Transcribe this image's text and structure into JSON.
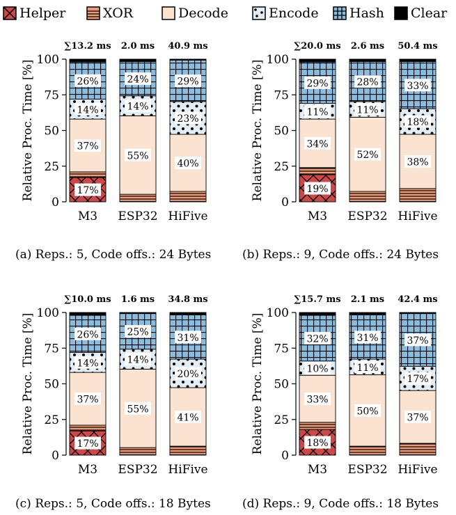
{
  "legend": [
    {
      "name": "Helper",
      "color": "#c94a48",
      "pattern": "crosshatch"
    },
    {
      "name": "XOR",
      "color": "#ec9a79",
      "pattern": "hlines"
    },
    {
      "name": "Decode",
      "color": "#fbe3d2",
      "pattern": "none"
    },
    {
      "name": "Encode",
      "color": "#e3edf5",
      "pattern": "dots"
    },
    {
      "name": "Hash",
      "color": "#8bbcde",
      "pattern": "grid"
    },
    {
      "name": "Clear",
      "color": "#000000",
      "pattern": "none"
    }
  ],
  "captions": [
    "(a) Reps.: 5, Code offs.: 24 Bytes",
    "(b) Reps.: 9, Code offs.: 24 Bytes",
    "(c) Reps.: 5, Code offs.: 18 Bytes",
    "(d) Reps.: 9, Code offs.: 18 Bytes"
  ],
  "chart_data": [
    {
      "type": "bar",
      "stacked": true,
      "ylabel": "Relative Proc.  Time [%]",
      "ylim": [
        0,
        100
      ],
      "yticks": [
        0,
        25,
        50,
        75,
        100
      ],
      "categories": [
        "M3",
        "ESP32",
        "HiFive"
      ],
      "totals": [
        "∑13.2 ms",
        "2.0 ms",
        "40.9 ms"
      ],
      "series": [
        {
          "name": "Helper",
          "values": [
            17,
            0.3,
            0.3
          ],
          "labels": [
            "17%",
            "",
            ""
          ]
        },
        {
          "name": "XOR",
          "values": [
            4,
            5,
            7
          ],
          "labels": [
            "",
            "",
            ""
          ]
        },
        {
          "name": "Decode",
          "values": [
            37,
            55,
            40
          ],
          "labels": [
            "37%",
            "55%",
            "40%"
          ]
        },
        {
          "name": "Encode",
          "values": [
            14,
            14,
            23
          ],
          "labels": [
            "14%",
            "14%",
            "23%"
          ]
        },
        {
          "name": "Hash",
          "values": [
            26,
            24,
            29
          ],
          "labels": [
            "26%",
            "24%",
            "29%"
          ]
        },
        {
          "name": "Clear",
          "values": [
            2,
            1.7,
            0.7
          ],
          "labels": [
            "",
            "",
            ""
          ]
        }
      ]
    },
    {
      "type": "bar",
      "stacked": true,
      "ylabel": "Relative Proc.  Time [%]",
      "ylim": [
        0,
        100
      ],
      "yticks": [
        0,
        25,
        50,
        75,
        100
      ],
      "categories": [
        "M3",
        "ESP32",
        "HiFive"
      ],
      "totals": [
        "∑20.0 ms",
        "2.6 ms",
        "50.4 ms"
      ],
      "series": [
        {
          "name": "Helper",
          "values": [
            19,
            0.3,
            0.3
          ],
          "labels": [
            "19%",
            "",
            ""
          ]
        },
        {
          "name": "XOR",
          "values": [
            5,
            7,
            9
          ],
          "labels": [
            "",
            "",
            ""
          ]
        },
        {
          "name": "Decode",
          "values": [
            34,
            52,
            38
          ],
          "labels": [
            "34%",
            "52%",
            "38%"
          ]
        },
        {
          "name": "Encode",
          "values": [
            11,
            11,
            18
          ],
          "labels": [
            "11%",
            "11%",
            "18%"
          ]
        },
        {
          "name": "Hash",
          "values": [
            29,
            28,
            33
          ],
          "labels": [
            "29%",
            "28%",
            "33%"
          ]
        },
        {
          "name": "Clear",
          "values": [
            2,
            1.7,
            1.7
          ],
          "labels": [
            "",
            "",
            ""
          ]
        }
      ]
    },
    {
      "type": "bar",
      "stacked": true,
      "ylabel": "Relative Proc.  Time [%]",
      "ylim": [
        0,
        100
      ],
      "yticks": [
        0,
        25,
        50,
        75,
        100
      ],
      "categories": [
        "M3",
        "ESP32",
        "HiFive"
      ],
      "totals": [
        "∑10.0 ms",
        "1.6 ms",
        "34.8 ms"
      ],
      "series": [
        {
          "name": "Helper",
          "values": [
            17,
            0.3,
            0.3
          ],
          "labels": [
            "17%",
            "",
            ""
          ]
        },
        {
          "name": "XOR",
          "values": [
            4,
            5,
            6
          ],
          "labels": [
            "",
            "",
            ""
          ]
        },
        {
          "name": "Decode",
          "values": [
            37,
            55,
            41
          ],
          "labels": [
            "37%",
            "55%",
            "41%"
          ]
        },
        {
          "name": "Encode",
          "values": [
            14,
            14,
            20
          ],
          "labels": [
            "14%",
            "14%",
            "20%"
          ]
        },
        {
          "name": "Hash",
          "values": [
            26,
            25,
            31
          ],
          "labels": [
            "26%",
            "25%",
            "31%"
          ]
        },
        {
          "name": "Clear",
          "values": [
            2,
            0.7,
            1.7
          ],
          "labels": [
            "",
            "",
            ""
          ]
        }
      ]
    },
    {
      "type": "bar",
      "stacked": true,
      "ylabel": "Relative Proc.  Time [%]",
      "ylim": [
        0,
        100
      ],
      "yticks": [
        0,
        25,
        50,
        75,
        100
      ],
      "categories": [
        "M3",
        "ESP32",
        "HiFive"
      ],
      "totals": [
        "∑15.7 ms",
        "2.1 ms",
        "42.4 ms"
      ],
      "series": [
        {
          "name": "Helper",
          "values": [
            18,
            0.3,
            0.3
          ],
          "labels": [
            "18%",
            "",
            ""
          ]
        },
        {
          "name": "XOR",
          "values": [
            5,
            6,
            8
          ],
          "labels": [
            "",
            "",
            ""
          ]
        },
        {
          "name": "Decode",
          "values": [
            33,
            50,
            37
          ],
          "labels": [
            "33%",
            "50%",
            "37%"
          ]
        },
        {
          "name": "Encode",
          "values": [
            10,
            11,
            17
          ],
          "labels": [
            "10%",
            "11%",
            "17%"
          ]
        },
        {
          "name": "Hash",
          "values": [
            32,
            31,
            37
          ],
          "labels": [
            "32%",
            "31%",
            "37%"
          ]
        },
        {
          "name": "Clear",
          "values": [
            2,
            1.7,
            0.7
          ],
          "labels": [
            "",
            "",
            ""
          ]
        }
      ]
    }
  ]
}
